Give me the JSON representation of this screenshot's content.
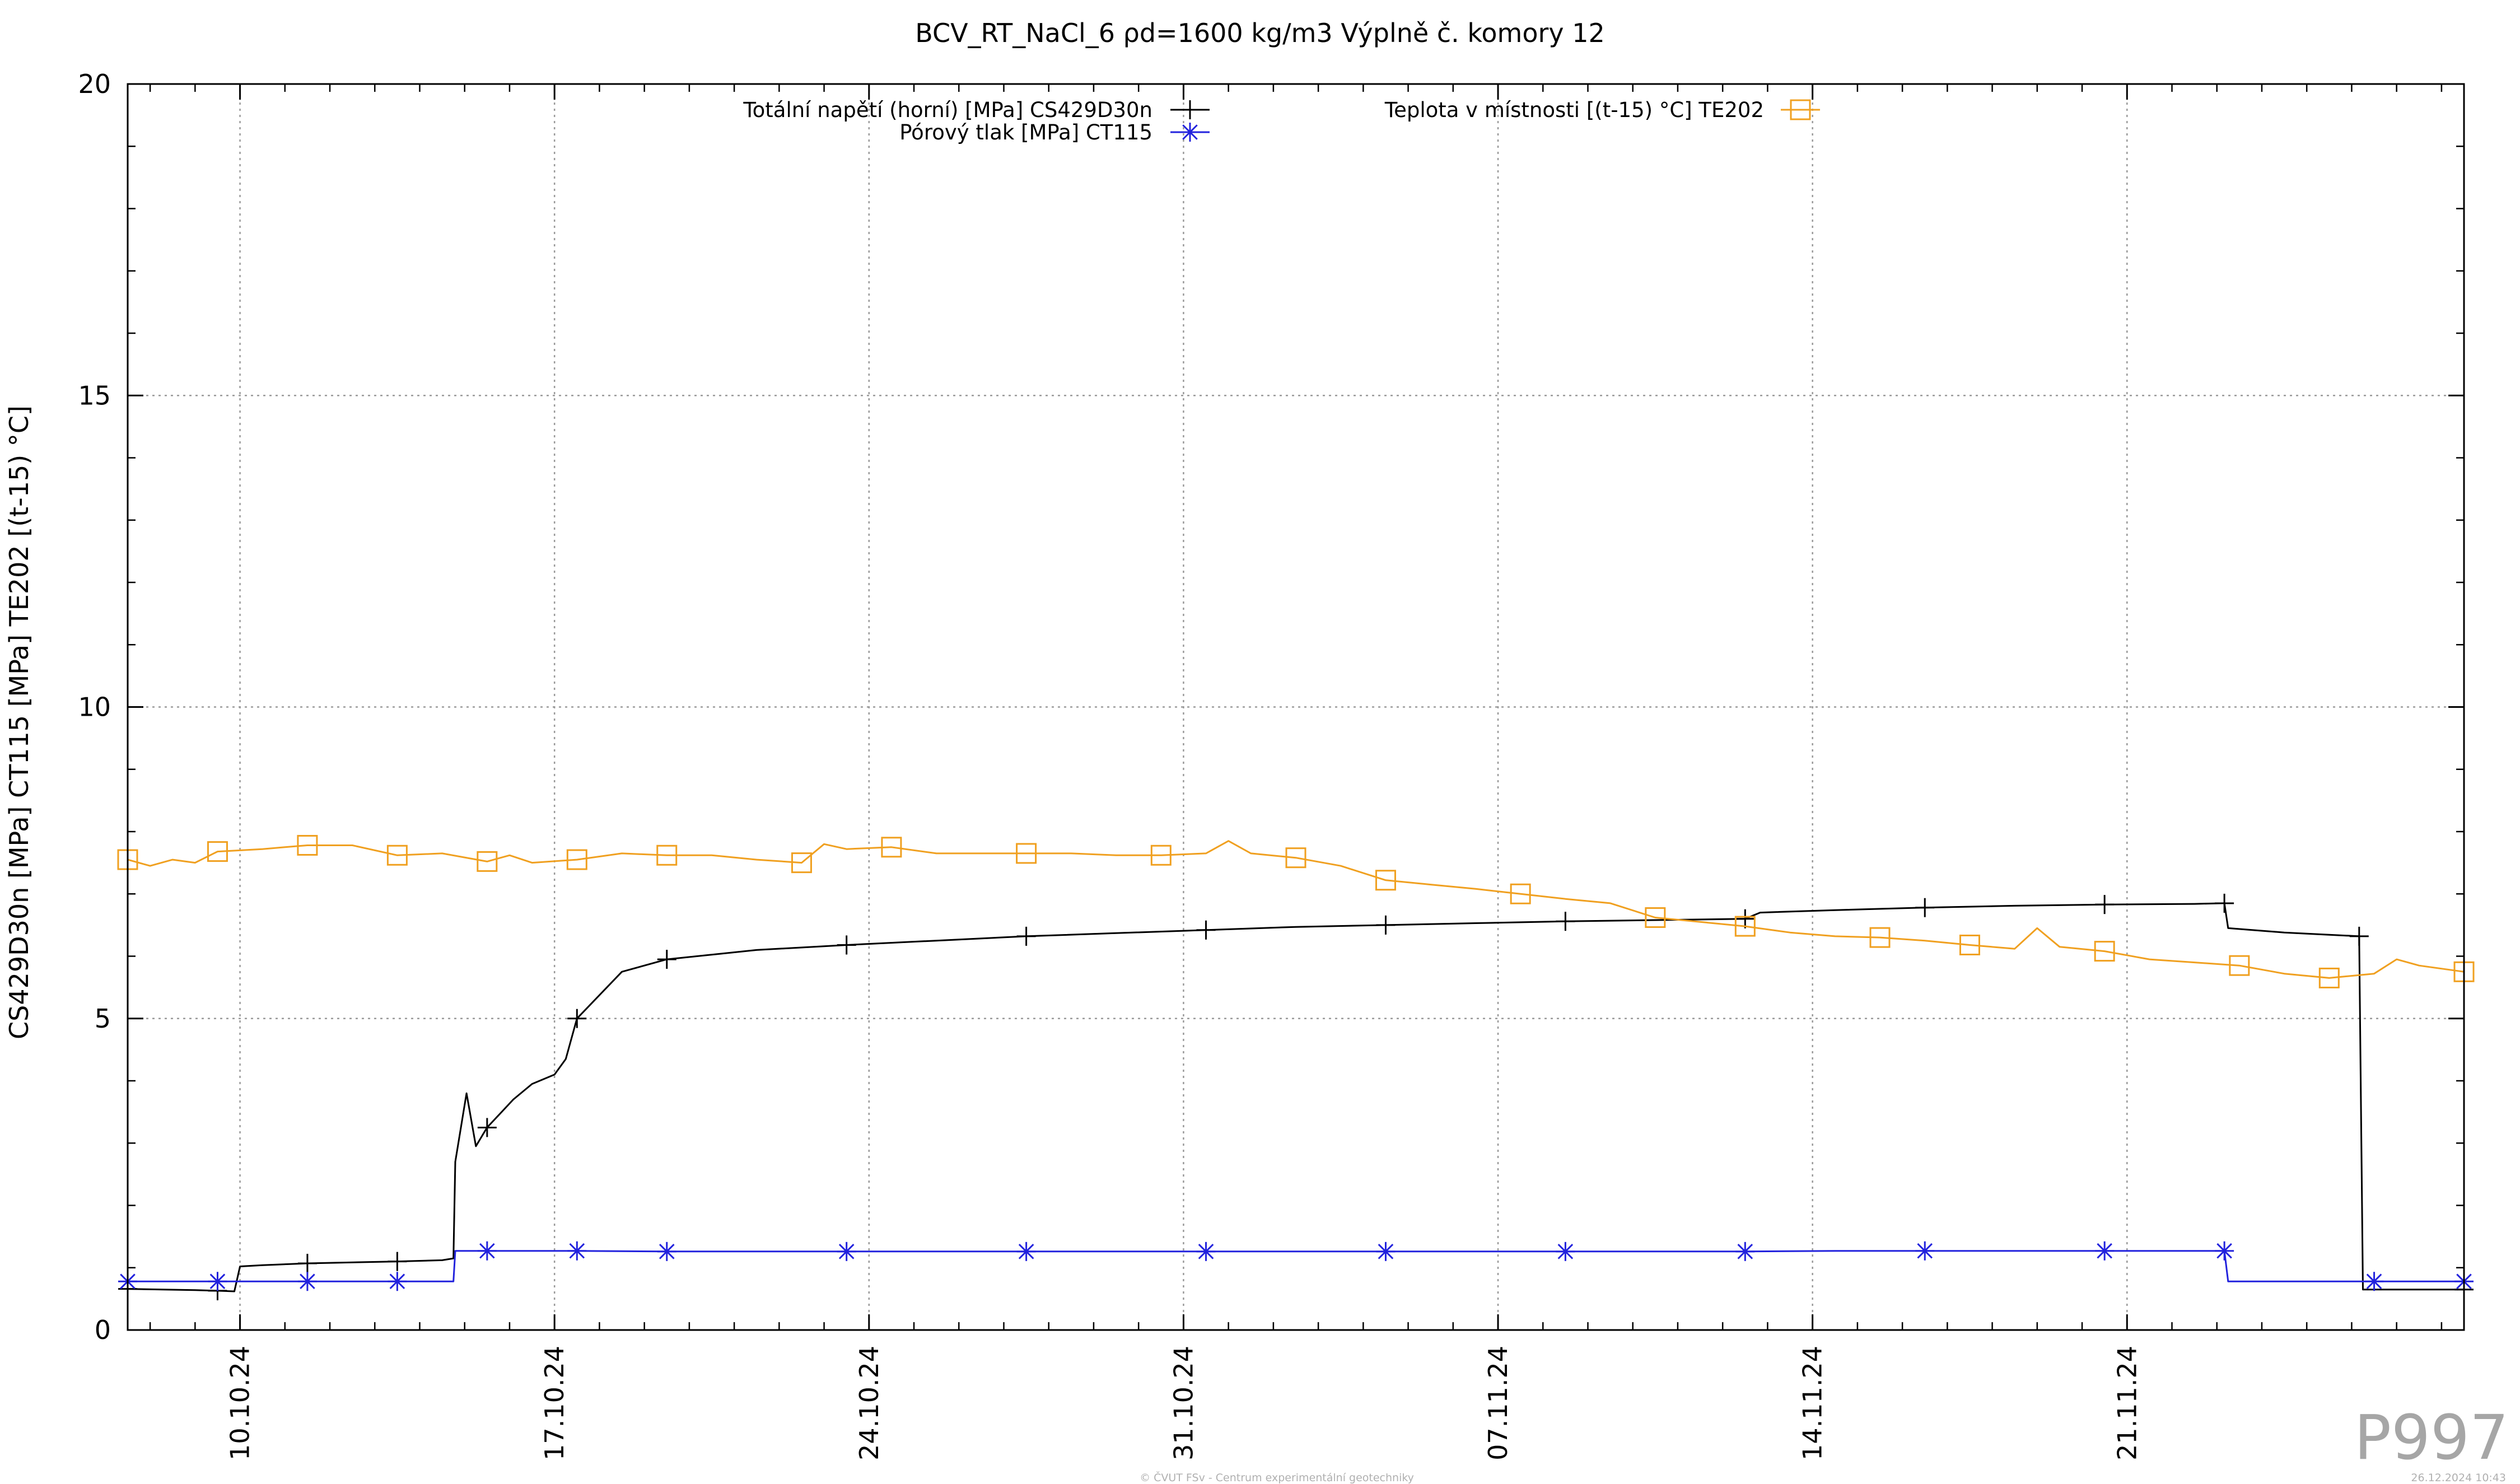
{
  "chart_data": {
    "type": "line",
    "title": "BCV_RT_NaCl_6 ρd=1600 kg/m3 Výplně č. komory 12",
    "ylabel": "CS429D30n [MPa] CT115 [MPa] TE202 [(t-15) °C]",
    "xlabel": "",
    "ylim": [
      0,
      20
    ],
    "yticks": [
      0,
      5,
      10,
      15,
      20
    ],
    "xlim": [
      "2024-10-07 12:00",
      "2024-11-28 12:00"
    ],
    "xticks": [
      "10.10.24",
      "17.10.24",
      "24.10.24",
      "31.10.24",
      "07.11.24",
      "14.11.24",
      "21.11.24"
    ],
    "xtick_dates": [
      "2024-10-10",
      "2024-10-17",
      "2024-10-24",
      "2024-10-31",
      "2024-11-07",
      "2024-11-14",
      "2024-11-21"
    ],
    "grid": true,
    "legend_position": "top",
    "series": [
      {
        "name": "Totální napětí (horní) [MPa] CS429D30n",
        "color": "#000000",
        "marker": "plus",
        "x": [
          "2024-10-07 12:00",
          "2024-10-09 00:00",
          "2024-10-09 12:00",
          "2024-10-09 21:00",
          "2024-10-10 00:00",
          "2024-10-10 12:00",
          "2024-10-11 12:00",
          "2024-10-13 12:00",
          "2024-10-14 12:00",
          "2024-10-14 18:00",
          "2024-10-14 19:00",
          "2024-10-15 01:00",
          "2024-10-15 06:00",
          "2024-10-15 12:00",
          "2024-10-16 02:00",
          "2024-10-16 12:00",
          "2024-10-17 00:00",
          "2024-10-17 06:00",
          "2024-10-17 12:00",
          "2024-10-18 12:00",
          "2024-10-19 12:00",
          "2024-10-21 12:00",
          "2024-10-23 12:00",
          "2024-10-25 12:00",
          "2024-10-27 12:00",
          "2024-10-29 12:00",
          "2024-10-31 12:00",
          "2024-11-02 12:00",
          "2024-11-04 12:00",
          "2024-11-06 12:00",
          "2024-11-08 12:00",
          "2024-11-10 12:00",
          "2024-11-12 12:00",
          "2024-11-12 20:00",
          "2024-11-14 12:00",
          "2024-11-16 12:00",
          "2024-11-18 12:00",
          "2024-11-20 12:00",
          "2024-11-22 12:00",
          "2024-11-23 04:00",
          "2024-11-23 06:00",
          "2024-11-24 12:00",
          "2024-11-26 04:00",
          "2024-11-26 06:00",
          "2024-11-28 12:00"
        ],
        "y": [
          0.66,
          0.64,
          0.63,
          0.62,
          1.02,
          1.04,
          1.07,
          1.1,
          1.12,
          1.15,
          2.7,
          3.8,
          2.95,
          3.25,
          3.7,
          3.95,
          4.1,
          4.35,
          5.0,
          5.75,
          5.95,
          6.1,
          6.18,
          6.25,
          6.32,
          6.37,
          6.42,
          6.47,
          6.5,
          6.53,
          6.56,
          6.58,
          6.6,
          6.7,
          6.74,
          6.78,
          6.81,
          6.83,
          6.84,
          6.85,
          6.45,
          6.38,
          6.32,
          0.65,
          0.65
        ]
      },
      {
        "name": "Pórový tlak [MPa] CT115",
        "color": "#2222dd",
        "marker": "asterisk",
        "x": [
          "2024-10-07 12:00",
          "2024-10-09 12:00",
          "2024-10-11 12:00",
          "2024-10-13 12:00",
          "2024-10-14 18:00",
          "2024-10-14 19:00",
          "2024-10-15 12:00",
          "2024-10-17 12:00",
          "2024-10-19 12:00",
          "2024-10-21 12:00",
          "2024-10-23 12:00",
          "2024-10-25 12:00",
          "2024-10-27 12:00",
          "2024-10-29 12:00",
          "2024-10-31 12:00",
          "2024-11-02 12:00",
          "2024-11-04 12:00",
          "2024-11-06 12:00",
          "2024-11-08 12:00",
          "2024-11-10 12:00",
          "2024-11-12 12:00",
          "2024-11-14 12:00",
          "2024-11-16 12:00",
          "2024-11-18 12:00",
          "2024-11-20 12:00",
          "2024-11-22 12:00",
          "2024-11-23 04:00",
          "2024-11-23 06:00",
          "2024-11-24 12:00",
          "2024-11-26 12:00",
          "2024-11-28 12:00"
        ],
        "y": [
          0.78,
          0.78,
          0.78,
          0.78,
          0.78,
          1.27,
          1.27,
          1.27,
          1.26,
          1.26,
          1.26,
          1.26,
          1.26,
          1.26,
          1.26,
          1.26,
          1.26,
          1.26,
          1.26,
          1.26,
          1.26,
          1.27,
          1.27,
          1.27,
          1.27,
          1.27,
          1.27,
          0.78,
          0.78,
          0.78,
          0.78
        ]
      },
      {
        "name": "Teplota v místnosti [(t-15) °C] TE202",
        "color": "#f0a020",
        "marker": "square",
        "x": [
          "2024-10-07 12:00",
          "2024-10-08 00:00",
          "2024-10-08 12:00",
          "2024-10-09 00:00",
          "2024-10-09 12:00",
          "2024-10-10 12:00",
          "2024-10-11 00:00",
          "2024-10-11 12:00",
          "2024-10-12 12:00",
          "2024-10-13 12:00",
          "2024-10-14 12:00",
          "2024-10-15 12:00",
          "2024-10-16 00:00",
          "2024-10-16 12:00",
          "2024-10-17 12:00",
          "2024-10-18 12:00",
          "2024-10-19 12:00",
          "2024-10-20 12:00",
          "2024-10-21 12:00",
          "2024-10-22 12:00",
          "2024-10-23 00:00",
          "2024-10-23 12:00",
          "2024-10-24 12:00",
          "2024-10-25 12:00",
          "2024-10-26 12:00",
          "2024-10-27 12:00",
          "2024-10-28 12:00",
          "2024-10-29 12:00",
          "2024-10-30 12:00",
          "2024-10-31 12:00",
          "2024-11-01 00:00",
          "2024-11-01 12:00",
          "2024-11-02 12:00",
          "2024-11-03 12:00",
          "2024-11-04 12:00",
          "2024-11-05 12:00",
          "2024-11-06 12:00",
          "2024-11-07 12:00",
          "2024-11-08 12:00",
          "2024-11-09 12:00",
          "2024-11-10 12:00",
          "2024-11-11 12:00",
          "2024-11-12 12:00",
          "2024-11-13 12:00",
          "2024-11-14 12:00",
          "2024-11-15 12:00",
          "2024-11-16 12:00",
          "2024-11-17 12:00",
          "2024-11-18 12:00",
          "2024-11-19 00:00",
          "2024-11-19 12:00",
          "2024-11-20 12:00",
          "2024-11-21 12:00",
          "2024-11-22 12:00",
          "2024-11-23 12:00",
          "2024-11-24 12:00",
          "2024-11-25 12:00",
          "2024-11-26 12:00",
          "2024-11-27 00:00",
          "2024-11-27 12:00",
          "2024-11-28 12:00"
        ],
        "y": [
          7.55,
          7.45,
          7.55,
          7.5,
          7.68,
          7.72,
          7.75,
          7.78,
          7.78,
          7.62,
          7.65,
          7.52,
          7.62,
          7.5,
          7.55,
          7.65,
          7.62,
          7.62,
          7.55,
          7.5,
          7.8,
          7.72,
          7.75,
          7.65,
          7.65,
          7.65,
          7.65,
          7.62,
          7.62,
          7.65,
          7.85,
          7.65,
          7.58,
          7.45,
          7.22,
          7.15,
          7.08,
          7.0,
          6.92,
          6.85,
          6.62,
          6.55,
          6.48,
          6.38,
          6.32,
          6.3,
          6.25,
          6.18,
          6.12,
          6.45,
          6.15,
          6.08,
          5.95,
          5.9,
          5.85,
          5.72,
          5.65,
          5.72,
          5.95,
          5.85,
          5.75
        ]
      }
    ]
  },
  "footer": {
    "watermark": "P997",
    "credit": "© ČVUT FSv - Centrum experimentální geotechniky",
    "timestamp": "26.12.2024 10:43"
  }
}
